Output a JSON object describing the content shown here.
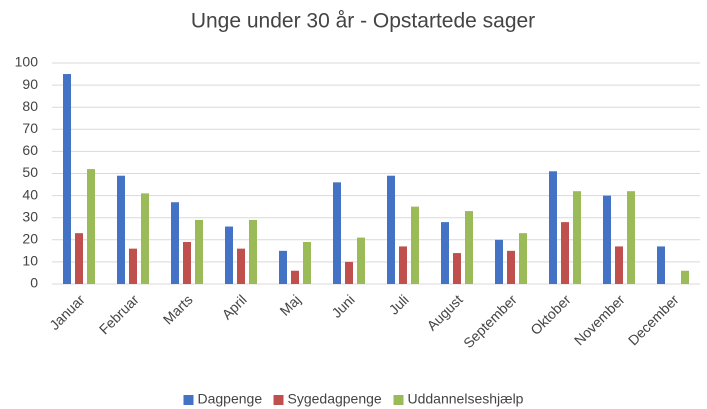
{
  "chart_data": {
    "type": "bar",
    "title": "Unge under 30 år - Opstartede sager",
    "categories": [
      "Januar",
      "Februar",
      "Marts",
      "April",
      "Maj",
      "Juni",
      "Juli",
      "August",
      "September",
      "Oktober",
      "November",
      "December"
    ],
    "series": [
      {
        "name": "Dagpenge",
        "color": "#4472c4",
        "values": [
          95,
          49,
          37,
          26,
          15,
          46,
          49,
          28,
          20,
          51,
          40,
          17
        ]
      },
      {
        "name": "Sygedagpenge",
        "color": "#c0504d",
        "values": [
          23,
          16,
          19,
          16,
          6,
          10,
          17,
          14,
          15,
          28,
          17,
          0
        ]
      },
      {
        "name": "Uddannelseshjælp",
        "color": "#9bbb59",
        "values": [
          52,
          41,
          29,
          29,
          19,
          21,
          35,
          33,
          23,
          42,
          42,
          6
        ]
      }
    ],
    "ylim": [
      0,
      100
    ],
    "yticks": [
      0,
      10,
      20,
      30,
      40,
      50,
      60,
      70,
      80,
      90,
      100
    ],
    "grid": true,
    "legend": "bottom"
  }
}
